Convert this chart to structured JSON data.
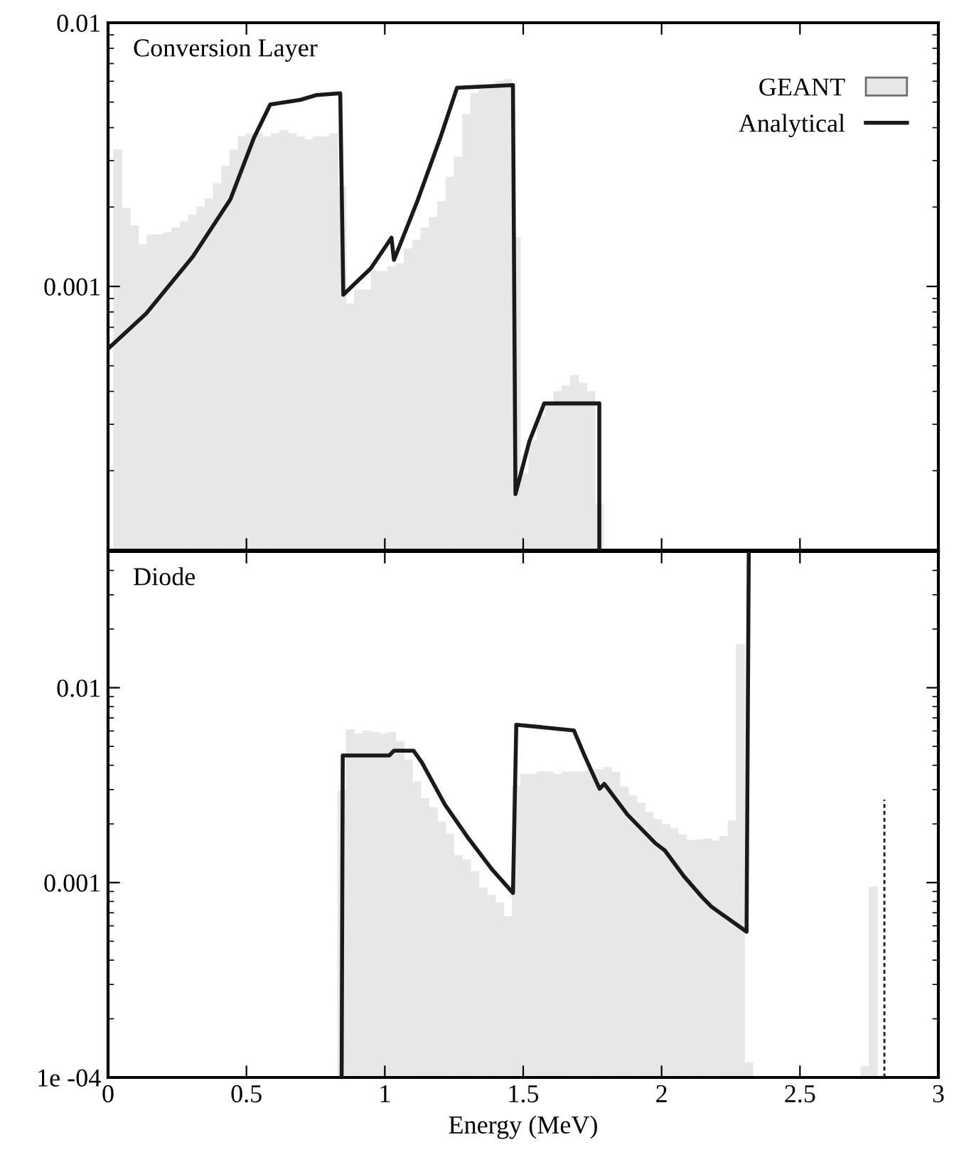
{
  "chart_data": [
    {
      "type": "histogram",
      "title": "Conversion Layer",
      "xlim": [
        0,
        3
      ],
      "ylim": [
        0.0001,
        0.01
      ],
      "log": "y",
      "legend": "top right",
      "grid": false,
      "tick_labels": "y",
      "xticks": [
        {
          "value": 0,
          "label": null
        },
        {
          "value": 0.5,
          "label": null
        },
        {
          "value": 1,
          "label": null
        },
        {
          "value": 1.5,
          "label": null
        },
        {
          "value": 2,
          "label": null
        },
        {
          "value": 2.5,
          "label": null
        },
        {
          "value": 3,
          "label": null
        }
      ],
      "yticks": [
        0.001,
        0.01
      ],
      "series": [
        {
          "name": "GEANT",
          "color": "#e6e7e8",
          "bins": [
            0.02,
            0.05,
            0.08,
            0.11,
            0.14,
            0.17,
            0.2,
            0.23,
            0.26,
            0.29,
            0.32,
            0.35,
            0.38,
            0.41,
            0.44,
            0.47,
            0.5,
            0.53,
            0.56,
            0.59,
            0.62,
            0.65,
            0.68,
            0.71,
            0.74,
            0.77,
            0.8,
            0.83,
            0.86,
            0.89,
            0.92,
            0.95,
            0.98,
            1.01,
            1.04,
            1.07,
            1.1,
            1.13,
            1.16,
            1.19,
            1.22,
            1.25,
            1.28,
            1.31,
            1.34,
            1.37,
            1.4,
            1.43,
            1.46,
            1.49,
            1.52,
            1.55,
            1.58,
            1.61,
            1.64,
            1.67,
            1.7,
            1.73,
            1.76,
            1.79
          ],
          "values": [
            0.0033,
            0.00198,
            0.0017,
            0.00144,
            0.00157,
            0.00157,
            0.0016,
            0.00167,
            0.00176,
            0.00187,
            0.002,
            0.00215,
            0.00245,
            0.00286,
            0.0033,
            0.0037,
            0.0038,
            0.0038,
            0.0037,
            0.0038,
            0.0039,
            0.0038,
            0.0037,
            0.0036,
            0.0037,
            0.0037,
            0.0038,
            0.0024,
            0.00086,
            0.00097,
            0.00097,
            0.00114,
            0.00114,
            0.00119,
            0.00122,
            0.00139,
            0.0015,
            0.00167,
            0.00183,
            0.0021,
            0.0026,
            0.0031,
            0.0045,
            0.0054,
            0.0056,
            0.0058,
            0.006,
            0.0061,
            0.00153,
            0.000195,
            0.00026,
            0.00032,
            0.00036,
            0.0004,
            0.00042,
            0.00046,
            0.00043,
            0.0004,
            0.00015
          ]
        },
        {
          "name": "Analytical",
          "type": "line",
          "color": "#1a1a1a",
          "line_style": "solid",
          "x": [
            0,
            0.138,
            0.307,
            0.442,
            0.527,
            0.586,
            0.695,
            0.754,
            0.839,
            0.85,
            0.949,
            1.024,
            1.033,
            1.117,
            1.202,
            1.261,
            1.463,
            1.472,
            1.522,
            1.576,
            1.775,
            1.775
          ],
          "values": [
            0.00058,
            0.00079,
            0.0013,
            0.00214,
            0.00366,
            0.0049,
            0.0051,
            0.00532,
            0.0054,
            0.00093,
            0.00117,
            0.00153,
            0.00126,
            0.0021,
            0.0037,
            0.00567,
            0.0058,
            0.000163,
            0.000258,
            0.00036,
            0.00036,
            0.0001
          ]
        }
      ]
    },
    {
      "type": "histogram",
      "title": "Diode",
      "xlabel": "Energy (MeV)",
      "xlim": [
        0,
        3
      ],
      "ylim": [
        0.0001,
        0.05
      ],
      "log": "y",
      "legend": false,
      "grid": false,
      "xticks": [
        0,
        0.5,
        1,
        1.5,
        2,
        2.5,
        3
      ],
      "yticks": [
        {
          "value": 0.0001,
          "label": "1e -04"
        },
        0.001,
        0.01
      ],
      "series": [
        {
          "color": "#e6e7e8",
          "bins": [
            0.83,
            0.86,
            0.89,
            0.92,
            0.95,
            0.98,
            1.01,
            1.04,
            1.07,
            1.1,
            1.13,
            1.16,
            1.19,
            1.22,
            1.25,
            1.28,
            1.31,
            1.34,
            1.37,
            1.4,
            1.43,
            1.46,
            1.49,
            1.52,
            1.55,
            1.58,
            1.61,
            1.64,
            1.67,
            1.7,
            1.73,
            1.76,
            1.79,
            1.82,
            1.85,
            1.88,
            1.91,
            1.94,
            1.97,
            2.0,
            2.03,
            2.06,
            2.09,
            2.12,
            2.15,
            2.18,
            2.21,
            2.24,
            2.27,
            2.3,
            2.33,
            2.36,
            2.39,
            2.42,
            2.45,
            2.48,
            2.51,
            2.54,
            2.57,
            2.6,
            2.63,
            2.66,
            2.69,
            2.72,
            2.75,
            2.78
          ],
          "values": [
            0.00295,
            0.0061,
            0.0058,
            0.006,
            0.0059,
            0.0058,
            0.0059,
            0.0053,
            0.00425,
            0.0033,
            0.0027,
            0.00243,
            0.00205,
            0.00178,
            0.00138,
            0.00131,
            0.00114,
            0.00094,
            0.00086,
            0.00079,
            0.00067,
            0.00312,
            0.0036,
            0.0036,
            0.0037,
            0.0037,
            0.0036,
            0.0037,
            0.0037,
            0.0037,
            0.0038,
            0.0038,
            0.0039,
            0.00369,
            0.0031,
            0.00279,
            0.00256,
            0.00229,
            0.00211,
            0.00199,
            0.0019,
            0.00176,
            0.00165,
            0.00166,
            0.00168,
            0.00164,
            0.00173,
            0.00208,
            0.0167,
            0.000119,
            null,
            null,
            null,
            null,
            null,
            null,
            null,
            null,
            null,
            null,
            null,
            null,
            null,
            0.000114,
            0.00095
          ]
        },
        {
          "type": "line",
          "color": "#1a1a1a",
          "line_style": "solid",
          "x": [
            0.844,
            0.848,
            1.016,
            1.033,
            1.104,
            1.134,
            1.218,
            1.303,
            1.387,
            1.463,
            1.475,
            1.683,
            1.725,
            1.776,
            1.793,
            1.877,
            1.978,
            2.012,
            2.08,
            2.147,
            2.181,
            2.307,
            2.315
          ],
          "values": [
            0.0001,
            0.00449,
            0.00449,
            0.00475,
            0.00475,
            0.00413,
            0.0025,
            0.00168,
            0.00117,
            0.000885,
            0.00646,
            0.00604,
            0.00437,
            0.00303,
            0.00321,
            0.00223,
            0.00159,
            0.00146,
            0.00108,
            0.00084,
            0.00075,
            0.00056,
            0.05
          ]
        },
        {
          "type": "line",
          "color": "#1a1a1a",
          "line_style": "dashed",
          "x": [
            2.805,
            2.805
          ],
          "values": [
            0.0001,
            0.00267
          ]
        }
      ]
    }
  ]
}
